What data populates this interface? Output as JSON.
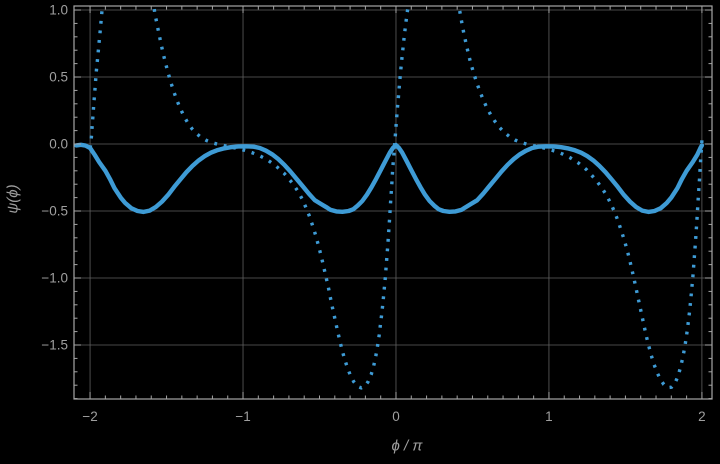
{
  "chart_data": {
    "type": "line",
    "title": "",
    "xlabel": "ϕ / π",
    "ylabel": "ψ(ϕ)",
    "xlim": [
      -2.105,
      2.066
    ],
    "ylim": [
      -1.903,
      1.03
    ],
    "grid": true,
    "legend": "none",
    "background_color": "#000000",
    "frame_color": "#a6a6a6",
    "grid_color": "#616161",
    "tick_label_color": "#9f9f9f",
    "curve_color": "#3e9bd5",
    "x_ticks": [
      -2,
      -1,
      0,
      1,
      2
    ],
    "x_tick_labels": [
      "−2",
      "−1",
      "0",
      "1",
      "2"
    ],
    "y_ticks": [
      1.0,
      0.5,
      0.0,
      -0.5,
      -1.0,
      -1.5
    ],
    "y_tick_labels": [
      "1.0",
      "0.5",
      "0.0",
      "−0.5",
      "−1.0",
      "−1.5"
    ],
    "x_minor_step": 0.1,
    "y_minor_step": 0.1,
    "series": [
      {
        "name": "psi-solid",
        "style": "solid",
        "stroke_width": 4.4,
        "points": [
          [
            -2.09,
            -0.01
          ],
          [
            -2.06,
            -0.006
          ],
          [
            -2.03,
            -0.012
          ],
          [
            -2.0,
            -0.03
          ],
          [
            -1.97,
            -0.08
          ],
          [
            -1.94,
            -0.135
          ],
          [
            -1.9,
            -0.2
          ],
          [
            -1.87,
            -0.26
          ],
          [
            -1.84,
            -0.33
          ],
          [
            -1.8,
            -0.4
          ],
          [
            -1.77,
            -0.44
          ],
          [
            -1.73,
            -0.48
          ],
          [
            -1.69,
            -0.5
          ],
          [
            -1.65,
            -0.507
          ],
          [
            -1.61,
            -0.497
          ],
          [
            -1.57,
            -0.47
          ],
          [
            -1.53,
            -0.43
          ],
          [
            -1.49,
            -0.38
          ],
          [
            -1.45,
            -0.32
          ],
          [
            -1.41,
            -0.265
          ],
          [
            -1.37,
            -0.21
          ],
          [
            -1.33,
            -0.163
          ],
          [
            -1.29,
            -0.122
          ],
          [
            -1.25,
            -0.09
          ],
          [
            -1.21,
            -0.065
          ],
          [
            -1.17,
            -0.047
          ],
          [
            -1.13,
            -0.034
          ],
          [
            -1.08,
            -0.024
          ],
          [
            -1.03,
            -0.018
          ],
          [
            -0.98,
            -0.017
          ],
          [
            -0.93,
            -0.02
          ],
          [
            -0.89,
            -0.03
          ],
          [
            -0.85,
            -0.05
          ],
          [
            -0.81,
            -0.077
          ],
          [
            -0.77,
            -0.112
          ],
          [
            -0.73,
            -0.155
          ],
          [
            -0.69,
            -0.205
          ],
          [
            -0.65,
            -0.26
          ],
          [
            -0.61,
            -0.315
          ],
          [
            -0.57,
            -0.37
          ],
          [
            -0.53,
            -0.42
          ],
          [
            -0.49,
            -0.448
          ],
          [
            -0.45,
            -0.475
          ],
          [
            -0.43,
            -0.49
          ],
          [
            -0.39,
            -0.503
          ],
          [
            -0.35,
            -0.506
          ],
          [
            -0.31,
            -0.5
          ],
          [
            -0.28,
            -0.487
          ],
          [
            -0.25,
            -0.46
          ],
          [
            -0.22,
            -0.425
          ],
          [
            -0.19,
            -0.378
          ],
          [
            -0.16,
            -0.322
          ],
          [
            -0.13,
            -0.26
          ],
          [
            -0.1,
            -0.195
          ],
          [
            -0.07,
            -0.128
          ],
          [
            -0.04,
            -0.063
          ],
          [
            -0.02,
            -0.03
          ],
          [
            0.0,
            -0.008
          ],
          [
            0.02,
            -0.03
          ],
          [
            0.04,
            -0.063
          ],
          [
            0.07,
            -0.128
          ],
          [
            0.1,
            -0.195
          ],
          [
            0.13,
            -0.26
          ],
          [
            0.16,
            -0.322
          ],
          [
            0.19,
            -0.378
          ],
          [
            0.22,
            -0.425
          ],
          [
            0.25,
            -0.46
          ],
          [
            0.28,
            -0.487
          ],
          [
            0.31,
            -0.5
          ],
          [
            0.35,
            -0.506
          ],
          [
            0.39,
            -0.503
          ],
          [
            0.43,
            -0.49
          ],
          [
            0.45,
            -0.475
          ],
          [
            0.49,
            -0.448
          ],
          [
            0.53,
            -0.42
          ],
          [
            0.57,
            -0.37
          ],
          [
            0.61,
            -0.315
          ],
          [
            0.65,
            -0.26
          ],
          [
            0.69,
            -0.205
          ],
          [
            0.73,
            -0.155
          ],
          [
            0.77,
            -0.112
          ],
          [
            0.81,
            -0.077
          ],
          [
            0.85,
            -0.05
          ],
          [
            0.89,
            -0.03
          ],
          [
            0.93,
            -0.02
          ],
          [
            0.98,
            -0.017
          ],
          [
            1.03,
            -0.018
          ],
          [
            1.08,
            -0.024
          ],
          [
            1.13,
            -0.034
          ],
          [
            1.17,
            -0.047
          ],
          [
            1.21,
            -0.065
          ],
          [
            1.25,
            -0.09
          ],
          [
            1.29,
            -0.122
          ],
          [
            1.33,
            -0.163
          ],
          [
            1.37,
            -0.21
          ],
          [
            1.41,
            -0.265
          ],
          [
            1.45,
            -0.32
          ],
          [
            1.49,
            -0.38
          ],
          [
            1.53,
            -0.43
          ],
          [
            1.57,
            -0.47
          ],
          [
            1.61,
            -0.497
          ],
          [
            1.65,
            -0.507
          ],
          [
            1.69,
            -0.5
          ],
          [
            1.73,
            -0.48
          ],
          [
            1.77,
            -0.44
          ],
          [
            1.8,
            -0.4
          ],
          [
            1.84,
            -0.33
          ],
          [
            1.87,
            -0.26
          ],
          [
            1.9,
            -0.2
          ],
          [
            1.94,
            -0.135
          ],
          [
            1.97,
            -0.08
          ],
          [
            1.99,
            -0.03
          ],
          [
            2.0,
            -0.01
          ]
        ]
      },
      {
        "name": "psi-dotted",
        "style": "dotted",
        "stroke_width": 3.4,
        "points": [
          [
            -2.0,
            -0.03
          ],
          [
            -1.995,
            0.0
          ],
          [
            -1.99,
            0.07
          ],
          [
            -1.986,
            0.14
          ],
          [
            -1.981,
            0.215
          ],
          [
            -1.976,
            0.29
          ],
          [
            -1.971,
            0.365
          ],
          [
            -1.966,
            0.44
          ],
          [
            -1.961,
            0.515
          ],
          [
            -1.955,
            0.59
          ],
          [
            -1.949,
            0.66
          ],
          [
            -1.942,
            0.745
          ],
          [
            -1.936,
            0.82
          ],
          [
            -1.93,
            0.895
          ],
          [
            -1.924,
            0.97
          ],
          [
            -1.917,
            1.06
          ],
          [
            -1.88,
            1.8
          ],
          [
            -1.76,
            3.2
          ],
          [
            -1.64,
            1.6
          ],
          [
            -1.585,
            1.06
          ],
          [
            -1.578,
            0.985
          ],
          [
            -1.565,
            0.91
          ],
          [
            -1.552,
            0.836
          ],
          [
            -1.538,
            0.76
          ],
          [
            -1.524,
            0.685
          ],
          [
            -1.508,
            0.61
          ],
          [
            -1.492,
            0.54
          ],
          [
            -1.474,
            0.468
          ],
          [
            -1.455,
            0.4
          ],
          [
            -1.434,
            0.332
          ],
          [
            -1.412,
            0.27
          ],
          [
            -1.388,
            0.212
          ],
          [
            -1.362,
            0.16
          ],
          [
            -1.334,
            0.115
          ],
          [
            -1.304,
            0.078
          ],
          [
            -1.272,
            0.048
          ],
          [
            -1.238,
            0.026
          ],
          [
            -1.202,
            0.01
          ],
          [
            -1.164,
            -0.002
          ],
          [
            -1.124,
            -0.012
          ],
          [
            -1.082,
            -0.022
          ],
          [
            -1.038,
            -0.033
          ],
          [
            -0.992,
            -0.046
          ],
          [
            -0.944,
            -0.063
          ],
          [
            -0.894,
            -0.086
          ],
          [
            -0.842,
            -0.117
          ],
          [
            -0.788,
            -0.16
          ],
          [
            -0.732,
            -0.218
          ],
          [
            -0.674,
            -0.296
          ],
          [
            -0.64,
            -0.355
          ],
          [
            -0.614,
            -0.41
          ],
          [
            -0.59,
            -0.47
          ],
          [
            -0.568,
            -0.532
          ],
          [
            -0.548,
            -0.6
          ],
          [
            -0.528,
            -0.67
          ],
          [
            -0.51,
            -0.745
          ],
          [
            -0.492,
            -0.822
          ],
          [
            -0.476,
            -0.9
          ],
          [
            -0.46,
            -0.98
          ],
          [
            -0.444,
            -1.06
          ],
          [
            -0.43,
            -1.14
          ],
          [
            -0.415,
            -1.222
          ],
          [
            -0.4,
            -1.3
          ],
          [
            -0.385,
            -1.38
          ],
          [
            -0.37,
            -1.455
          ],
          [
            -0.354,
            -1.53
          ],
          [
            -0.337,
            -1.6
          ],
          [
            -0.318,
            -1.667
          ],
          [
            -0.298,
            -1.727
          ],
          [
            -0.276,
            -1.775
          ],
          [
            -0.252,
            -1.808
          ],
          [
            -0.227,
            -1.82
          ],
          [
            -0.203,
            -1.808
          ],
          [
            -0.181,
            -1.772
          ],
          [
            -0.162,
            -1.72
          ],
          [
            -0.146,
            -1.655
          ],
          [
            -0.132,
            -1.583
          ],
          [
            -0.12,
            -1.505
          ],
          [
            -0.11,
            -1.425
          ],
          [
            -0.101,
            -1.343
          ],
          [
            -0.092,
            -1.258
          ],
          [
            -0.084,
            -1.172
          ],
          [
            -0.077,
            -1.085
          ],
          [
            -0.07,
            -0.998
          ],
          [
            -0.064,
            -0.91
          ],
          [
            -0.058,
            -0.822
          ],
          [
            -0.052,
            -0.734
          ],
          [
            -0.047,
            -0.645
          ],
          [
            -0.042,
            -0.556
          ],
          [
            -0.037,
            -0.467
          ],
          [
            -0.032,
            -0.378
          ],
          [
            -0.027,
            -0.288
          ],
          [
            -0.022,
            -0.198
          ],
          [
            -0.016,
            -0.108
          ],
          [
            -0.01,
            -0.018
          ],
          [
            -0.004,
            0.07
          ],
          [
            0.002,
            0.16
          ],
          [
            0.008,
            0.25
          ],
          [
            0.015,
            0.34
          ],
          [
            0.022,
            0.432
          ],
          [
            0.029,
            0.524
          ],
          [
            0.037,
            0.617
          ],
          [
            0.045,
            0.71
          ],
          [
            0.054,
            0.8
          ],
          [
            0.063,
            0.89
          ],
          [
            0.073,
            0.975
          ],
          [
            0.083,
            1.06
          ],
          [
            0.12,
            1.8
          ],
          [
            0.22,
            3.2
          ],
          [
            0.35,
            1.6
          ],
          [
            0.405,
            1.06
          ],
          [
            0.418,
            0.985
          ],
          [
            0.43,
            0.906
          ],
          [
            0.443,
            0.83
          ],
          [
            0.457,
            0.755
          ],
          [
            0.472,
            0.68
          ],
          [
            0.488,
            0.607
          ],
          [
            0.506,
            0.536
          ],
          [
            0.525,
            0.467
          ],
          [
            0.546,
            0.4
          ],
          [
            0.568,
            0.336
          ],
          [
            0.592,
            0.276
          ],
          [
            0.618,
            0.221
          ],
          [
            0.646,
            0.17
          ],
          [
            0.676,
            0.125
          ],
          [
            0.708,
            0.087
          ],
          [
            0.742,
            0.055
          ],
          [
            0.778,
            0.03
          ],
          [
            0.816,
            0.012
          ],
          [
            0.856,
            -0.001
          ],
          [
            0.898,
            -0.012
          ],
          [
            0.942,
            -0.023
          ],
          [
            0.988,
            -0.036
          ],
          [
            1.036,
            -0.052
          ],
          [
            1.086,
            -0.073
          ],
          [
            1.138,
            -0.102
          ],
          [
            1.192,
            -0.141
          ],
          [
            1.248,
            -0.194
          ],
          [
            1.306,
            -0.266
          ],
          [
            1.35,
            -0.335
          ],
          [
            1.38,
            -0.39
          ],
          [
            1.406,
            -0.448
          ],
          [
            1.43,
            -0.51
          ],
          [
            1.452,
            -0.575
          ],
          [
            1.472,
            -0.643
          ],
          [
            1.492,
            -0.714
          ],
          [
            1.51,
            -0.788
          ],
          [
            1.527,
            -0.863
          ],
          [
            1.543,
            -0.94
          ],
          [
            1.559,
            -1.02
          ],
          [
            1.574,
            -1.1
          ],
          [
            1.589,
            -1.18
          ],
          [
            1.604,
            -1.26
          ],
          [
            1.619,
            -1.34
          ],
          [
            1.634,
            -1.42
          ],
          [
            1.65,
            -1.497
          ],
          [
            1.667,
            -1.57
          ],
          [
            1.685,
            -1.638
          ],
          [
            1.705,
            -1.7
          ],
          [
            1.727,
            -1.753
          ],
          [
            1.751,
            -1.795
          ],
          [
            1.776,
            -1.818
          ],
          [
            1.801,
            -1.815
          ],
          [
            1.824,
            -1.785
          ],
          [
            1.844,
            -1.732
          ],
          [
            1.861,
            -1.665
          ],
          [
            1.876,
            -1.59
          ],
          [
            1.889,
            -1.51
          ],
          [
            1.9,
            -1.427
          ],
          [
            1.91,
            -1.341
          ],
          [
            1.919,
            -1.254
          ],
          [
            1.927,
            -1.166
          ],
          [
            1.934,
            -1.077
          ],
          [
            1.941,
            -0.988
          ],
          [
            1.947,
            -0.898
          ],
          [
            1.953,
            -0.808
          ],
          [
            1.959,
            -0.717
          ],
          [
            1.964,
            -0.627
          ],
          [
            1.969,
            -0.536
          ],
          [
            1.974,
            -0.445
          ],
          [
            1.979,
            -0.354
          ],
          [
            1.984,
            -0.262
          ],
          [
            1.989,
            -0.171
          ],
          [
            1.994,
            -0.079
          ],
          [
            1.999,
            0.012
          ],
          [
            2.0,
            0.03
          ]
        ]
      }
    ]
  }
}
